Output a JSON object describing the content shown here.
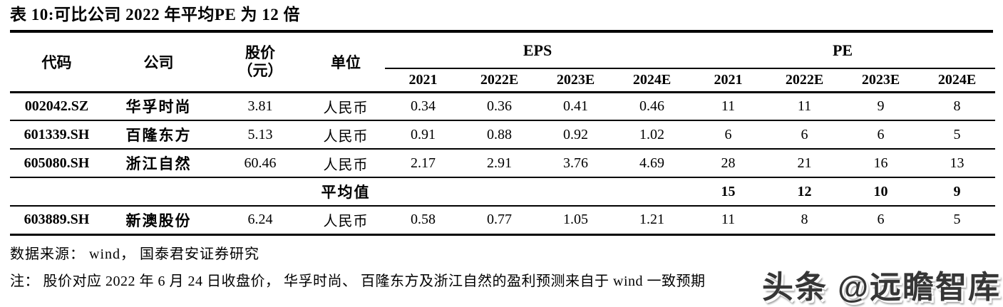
{
  "title": "表 10:可比公司 2022 年平均PE 为 12 倍",
  "table": {
    "headers": {
      "code": "代码",
      "company": "公司",
      "price_line1": "股价",
      "price_line2": "（元）",
      "unit": "单位",
      "eps_group": "EPS",
      "pe_group": "PE",
      "years": [
        "2021",
        "2022E",
        "2023E",
        "2024E",
        "2021",
        "2022E",
        "2023E",
        "2024E"
      ]
    },
    "rows": [
      {
        "code": "002042.SZ",
        "company": "华孚时尚",
        "price": "3.81",
        "unit": "人民币",
        "average": false,
        "values": [
          "0.34",
          "0.36",
          "0.41",
          "0.46",
          "11",
          "11",
          "9",
          "8"
        ]
      },
      {
        "code": "601339.SH",
        "company": "百隆东方",
        "price": "5.13",
        "unit": "人民币",
        "average": false,
        "values": [
          "0.91",
          "0.88",
          "0.92",
          "1.02",
          "6",
          "6",
          "6",
          "5"
        ]
      },
      {
        "code": "605080.SH",
        "company": "浙江自然",
        "price": "60.46",
        "unit": "人民币",
        "average": false,
        "values": [
          "2.17",
          "2.91",
          "3.76",
          "4.69",
          "28",
          "21",
          "16",
          "13"
        ]
      },
      {
        "code": "",
        "company": "",
        "price": "",
        "unit": "平均值",
        "average": true,
        "values": [
          "",
          "",
          "",
          "",
          "15",
          "12",
          "10",
          "9"
        ]
      },
      {
        "code": "603889.SH",
        "company": "新澳股份",
        "price": "6.24",
        "unit": "人民币",
        "average": false,
        "values": [
          "0.58",
          "0.77",
          "1.05",
          "1.21",
          "11",
          "8",
          "6",
          "5"
        ]
      }
    ]
  },
  "footer": {
    "source": "数据来源： wind， 国泰君安证券研究",
    "note": "注： 股价对应 2022 年 6 月 24 日收盘价， 华孚时尚、 百隆东方及浙江自然的盈利预测来自于 wind 一致预期"
  },
  "watermark": "头条 @远瞻智库",
  "colors": {
    "text": "#000000",
    "background": "#ffffff",
    "watermark": "#363636"
  }
}
